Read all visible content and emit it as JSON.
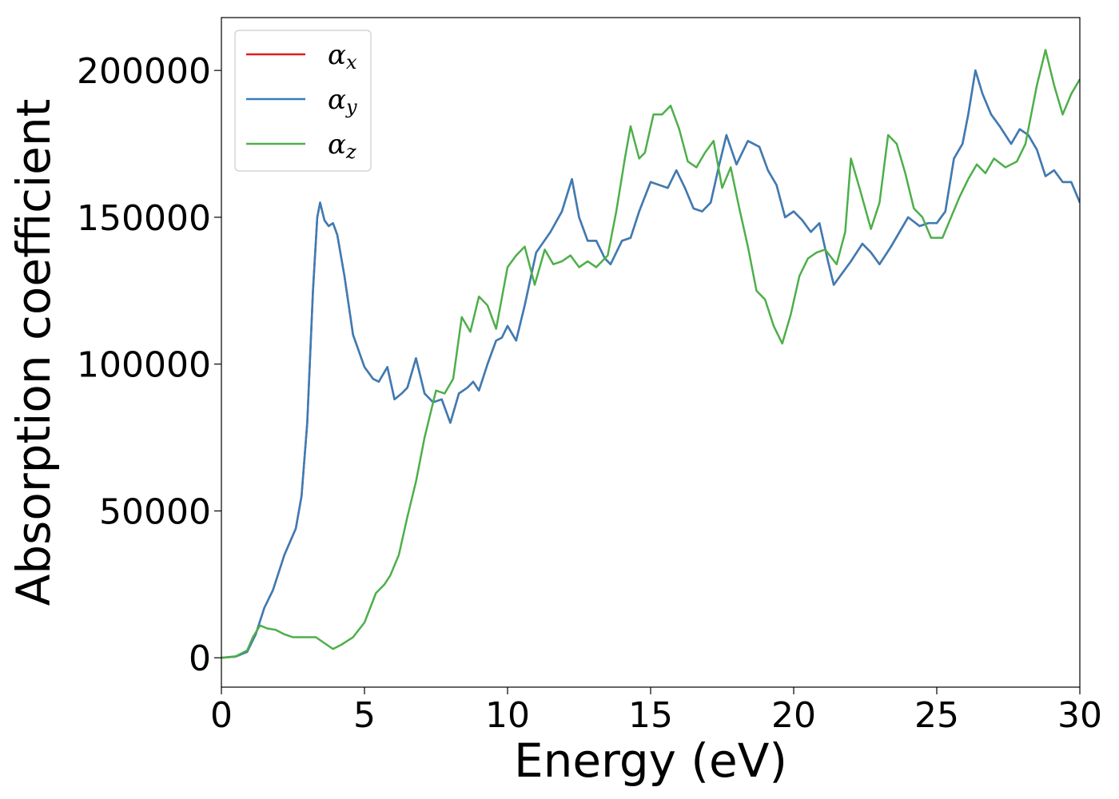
{
  "chart_data": {
    "type": "line",
    "title": "",
    "xlabel": "Energy (eV)",
    "ylabel": "Absorption coefficient",
    "xlim": [
      0,
      30
    ],
    "ylim": [
      -10000,
      218000
    ],
    "x_ticks": [
      0,
      5,
      10,
      15,
      20,
      25,
      30
    ],
    "y_ticks": [
      0,
      50000,
      100000,
      150000,
      200000
    ],
    "grid": false,
    "legend_position": "upper-left",
    "series": [
      {
        "name": "α_x",
        "label_main": "α",
        "label_sub": "x",
        "color": "#e41a1c",
        "same_as": "α_y"
      },
      {
        "name": "α_y",
        "label_main": "α",
        "label_sub": "y",
        "color": "#377eb8",
        "points": [
          [
            0,
            0
          ],
          [
            0.5,
            400
          ],
          [
            0.9,
            2000
          ],
          [
            1.2,
            8000
          ],
          [
            1.5,
            17000
          ],
          [
            1.8,
            23000
          ],
          [
            2.2,
            35000
          ],
          [
            2.6,
            44000
          ],
          [
            2.8,
            55000
          ],
          [
            3.0,
            80000
          ],
          [
            3.2,
            125000
          ],
          [
            3.35,
            150000
          ],
          [
            3.45,
            155000
          ],
          [
            3.6,
            149000
          ],
          [
            3.75,
            147000
          ],
          [
            3.9,
            148000
          ],
          [
            4.05,
            144000
          ],
          [
            4.3,
            130000
          ],
          [
            4.6,
            110000
          ],
          [
            5.0,
            99000
          ],
          [
            5.3,
            95000
          ],
          [
            5.5,
            94000
          ],
          [
            5.8,
            99000
          ],
          [
            6.05,
            88000
          ],
          [
            6.3,
            90000
          ],
          [
            6.5,
            92000
          ],
          [
            6.8,
            102000
          ],
          [
            7.1,
            90000
          ],
          [
            7.4,
            87000
          ],
          [
            7.7,
            88000
          ],
          [
            8.0,
            80000
          ],
          [
            8.3,
            90000
          ],
          [
            8.6,
            92000
          ],
          [
            8.8,
            94000
          ],
          [
            9.0,
            91000
          ],
          [
            9.3,
            100000
          ],
          [
            9.6,
            108000
          ],
          [
            9.8,
            109000
          ],
          [
            10.0,
            113000
          ],
          [
            10.3,
            108000
          ],
          [
            10.6,
            120000
          ],
          [
            11.0,
            138000
          ],
          [
            11.5,
            145000
          ],
          [
            11.9,
            152000
          ],
          [
            12.25,
            163000
          ],
          [
            12.5,
            150000
          ],
          [
            12.8,
            142000
          ],
          [
            13.1,
            142000
          ],
          [
            13.4,
            136000
          ],
          [
            13.6,
            134000
          ],
          [
            14.0,
            142000
          ],
          [
            14.3,
            143000
          ],
          [
            14.6,
            152000
          ],
          [
            15.0,
            162000
          ],
          [
            15.3,
            161000
          ],
          [
            15.6,
            160000
          ],
          [
            15.9,
            166000
          ],
          [
            16.2,
            160000
          ],
          [
            16.5,
            153000
          ],
          [
            16.8,
            152000
          ],
          [
            17.1,
            155000
          ],
          [
            17.4,
            168000
          ],
          [
            17.65,
            178000
          ],
          [
            18.0,
            168000
          ],
          [
            18.4,
            176000
          ],
          [
            18.8,
            174000
          ],
          [
            19.1,
            166000
          ],
          [
            19.4,
            161000
          ],
          [
            19.7,
            150000
          ],
          [
            20.0,
            152000
          ],
          [
            20.3,
            149000
          ],
          [
            20.6,
            145000
          ],
          [
            20.9,
            148000
          ],
          [
            21.2,
            135000
          ],
          [
            21.4,
            127000
          ],
          [
            21.7,
            131000
          ],
          [
            22.0,
            135000
          ],
          [
            22.4,
            141000
          ],
          [
            22.7,
            138000
          ],
          [
            23.0,
            134000
          ],
          [
            23.4,
            140000
          ],
          [
            23.7,
            145000
          ],
          [
            24.0,
            150000
          ],
          [
            24.4,
            147000
          ],
          [
            24.7,
            148000
          ],
          [
            25.0,
            148000
          ],
          [
            25.3,
            152000
          ],
          [
            25.6,
            170000
          ],
          [
            25.9,
            175000
          ],
          [
            26.1,
            185000
          ],
          [
            26.35,
            200000
          ],
          [
            26.6,
            192000
          ],
          [
            26.9,
            185000
          ],
          [
            27.2,
            181000
          ],
          [
            27.6,
            175000
          ],
          [
            27.9,
            180000
          ],
          [
            28.2,
            178000
          ],
          [
            28.5,
            173000
          ],
          [
            28.8,
            164000
          ],
          [
            29.1,
            166000
          ],
          [
            29.4,
            162000
          ],
          [
            29.7,
            162000
          ],
          [
            30.0,
            155000
          ]
        ]
      },
      {
        "name": "α_z",
        "label_main": "α",
        "label_sub": "z",
        "color": "#4daf4a",
        "points": [
          [
            0,
            0
          ],
          [
            0.5,
            500
          ],
          [
            0.9,
            2500
          ],
          [
            1.1,
            7000
          ],
          [
            1.35,
            11000
          ],
          [
            1.6,
            10000
          ],
          [
            1.9,
            9500
          ],
          [
            2.2,
            8000
          ],
          [
            2.5,
            7000
          ],
          [
            3.0,
            7000
          ],
          [
            3.3,
            7000
          ],
          [
            3.6,
            5000
          ],
          [
            3.9,
            3000
          ],
          [
            4.2,
            4500
          ],
          [
            4.6,
            7000
          ],
          [
            5.0,
            12000
          ],
          [
            5.2,
            17000
          ],
          [
            5.4,
            22000
          ],
          [
            5.7,
            25000
          ],
          [
            5.9,
            28000
          ],
          [
            6.2,
            35000
          ],
          [
            6.5,
            48000
          ],
          [
            6.8,
            60000
          ],
          [
            7.1,
            75000
          ],
          [
            7.5,
            91000
          ],
          [
            7.8,
            90000
          ],
          [
            8.1,
            95000
          ],
          [
            8.4,
            116000
          ],
          [
            8.7,
            111000
          ],
          [
            9.0,
            123000
          ],
          [
            9.3,
            120000
          ],
          [
            9.6,
            112000
          ],
          [
            10.0,
            133000
          ],
          [
            10.3,
            137000
          ],
          [
            10.6,
            140000
          ],
          [
            10.95,
            127000
          ],
          [
            11.3,
            139000
          ],
          [
            11.6,
            134000
          ],
          [
            11.9,
            135000
          ],
          [
            12.2,
            137000
          ],
          [
            12.5,
            133000
          ],
          [
            12.8,
            135000
          ],
          [
            13.1,
            133000
          ],
          [
            13.5,
            137000
          ],
          [
            13.8,
            152000
          ],
          [
            14.1,
            170000
          ],
          [
            14.3,
            181000
          ],
          [
            14.6,
            170000
          ],
          [
            14.8,
            172000
          ],
          [
            15.1,
            185000
          ],
          [
            15.4,
            185000
          ],
          [
            15.7,
            188000
          ],
          [
            16.0,
            180000
          ],
          [
            16.3,
            169000
          ],
          [
            16.6,
            167000
          ],
          [
            16.9,
            172000
          ],
          [
            17.2,
            176000
          ],
          [
            17.5,
            160000
          ],
          [
            17.8,
            167000
          ],
          [
            18.1,
            153000
          ],
          [
            18.4,
            140000
          ],
          [
            18.7,
            125000
          ],
          [
            19.0,
            122000
          ],
          [
            19.3,
            113000
          ],
          [
            19.6,
            107000
          ],
          [
            19.9,
            117000
          ],
          [
            20.2,
            130000
          ],
          [
            20.5,
            136000
          ],
          [
            20.8,
            138000
          ],
          [
            21.1,
            139000
          ],
          [
            21.5,
            134000
          ],
          [
            21.8,
            145000
          ],
          [
            22.0,
            170000
          ],
          [
            22.3,
            160000
          ],
          [
            22.7,
            146000
          ],
          [
            23.0,
            155000
          ],
          [
            23.3,
            178000
          ],
          [
            23.6,
            175000
          ],
          [
            23.9,
            165000
          ],
          [
            24.2,
            153000
          ],
          [
            24.5,
            150000
          ],
          [
            24.8,
            143000
          ],
          [
            25.2,
            143000
          ],
          [
            25.5,
            150000
          ],
          [
            25.8,
            157000
          ],
          [
            26.1,
            163000
          ],
          [
            26.4,
            168000
          ],
          [
            26.7,
            165000
          ],
          [
            27.0,
            170000
          ],
          [
            27.4,
            167000
          ],
          [
            27.8,
            169000
          ],
          [
            28.1,
            175000
          ],
          [
            28.5,
            195000
          ],
          [
            28.8,
            207000
          ],
          [
            29.1,
            195000
          ],
          [
            29.4,
            185000
          ],
          [
            29.7,
            192000
          ],
          [
            30.0,
            197000
          ]
        ]
      }
    ]
  }
}
